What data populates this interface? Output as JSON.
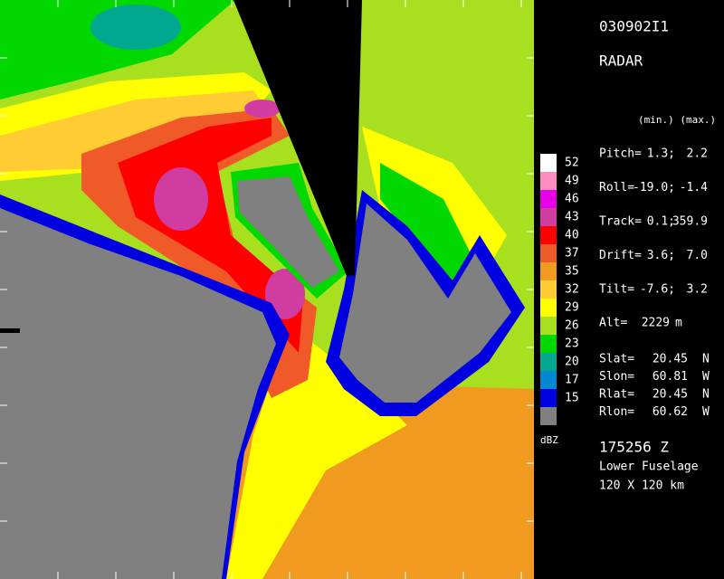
{
  "header": {
    "flight_id": "030902I1",
    "product": "RADAR",
    "column_heads": "(min.) (max.)"
  },
  "attitude": [
    {
      "label": "Pitch=",
      "min": "1.3;",
      "max": "2.2"
    },
    {
      "label": "Roll=",
      "min": "-19.0;",
      "max": "-1.4"
    },
    {
      "label": "Track=",
      "min": "0.1;",
      "max": "359.9"
    },
    {
      "label": "Drift=",
      "min": "3.6;",
      "max": "7.0"
    },
    {
      "label": "Tilt=",
      "min": "-7.6;",
      "max": "3.2"
    }
  ],
  "altitude": {
    "label": "Alt=",
    "value": "2229",
    "unit": "m"
  },
  "positions": [
    {
      "label": "Slat=",
      "value": "20.45",
      "unit": "N"
    },
    {
      "label": "Slon=",
      "value": "60.81",
      "unit": "W"
    },
    {
      "label": "Rlat=",
      "value": "20.45",
      "unit": "N"
    },
    {
      "label": "Rlon=",
      "value": "60.62",
      "unit": "W"
    }
  ],
  "footer": {
    "time": "175256 Z",
    "antenna": "Lower Fuselage",
    "domain": "120 X 120 km"
  },
  "legend": {
    "unit": "dBZ",
    "items": [
      {
        "label": 52,
        "color": "#ffffff"
      },
      {
        "label": 49,
        "color": "#ff8cc0"
      },
      {
        "label": 46,
        "color": "#e600e6"
      },
      {
        "label": 43,
        "color": "#d03ca0"
      },
      {
        "label": 40,
        "color": "#ff0000"
      },
      {
        "label": 37,
        "color": "#f05a28"
      },
      {
        "label": 35,
        "color": "#f09a20"
      },
      {
        "label": 32,
        "color": "#ffcc33"
      },
      {
        "label": 29,
        "color": "#ffff00"
      },
      {
        "label": 26,
        "color": "#a8e020"
      },
      {
        "label": 23,
        "color": "#00d800"
      },
      {
        "label": 20,
        "color": "#00a890"
      },
      {
        "label": 17,
        "color": "#0088d0"
      },
      {
        "label": 15,
        "color": "#0000e0"
      },
      {
        "label": null,
        "color": "#808080"
      }
    ]
  }
}
